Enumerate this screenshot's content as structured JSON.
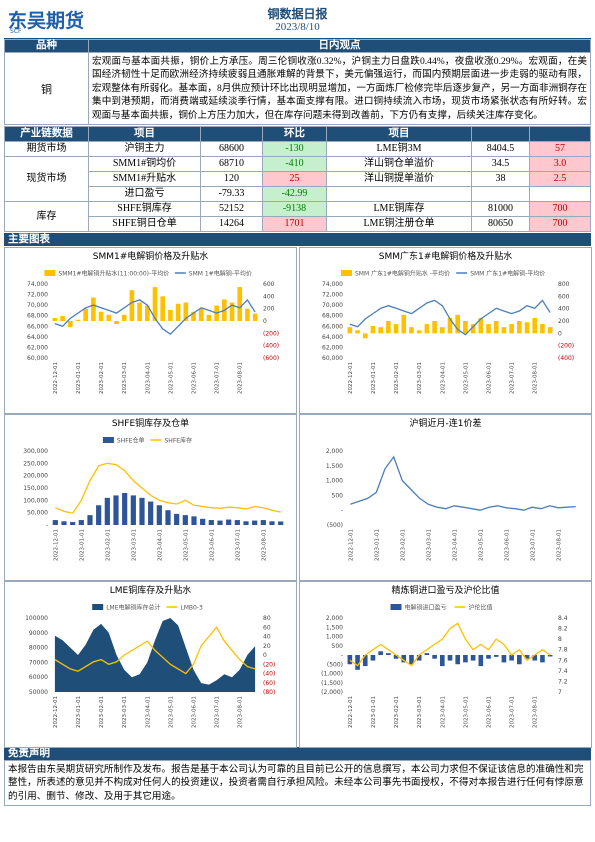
{
  "header": {
    "logo": "东吴期货",
    "logo_sub": "SCF",
    "title": "铜数据日报",
    "date": "2023/8/10"
  },
  "view_table": {
    "headers": [
      "品种",
      "日内观点"
    ],
    "rows": [
      [
        "铜",
        "宏观面与基本面共振，铜价上方承压。周三伦铜收涨0.32%，沪铜主力日盘跌0.44%，夜盘收涨0.29%。宏观面，在美国经济韧性十足而欧洲经济持续疲弱且通胀难解的背景下，美元偏强运行，而国内预期层面进一步走弱的驱动有限，宏观整体有所弱化。基本面，8月供应预计环比出现明显增加，一方面炼厂检修完毕后逐步复产，另一方面非洲铜存在集中到港预期，而消费端或延续淡季行情，基本面支撑有限。进口铜持续流入市场，现货市场紧张状态有所好转。宏观面与基本面共振，铜价上方压力加大，但在库存问题未得到改善前，下方仍有支撑，后续关注库存变化。"
      ]
    ]
  },
  "data_table": {
    "headers": [
      "产业链数据",
      "项目",
      "环比",
      "项目"
    ],
    "groups": [
      {
        "name": "期货市场",
        "rows": [
          [
            "沪铜主力",
            "68600",
            "-130",
            "LME铜3M",
            "8404.5",
            "57"
          ]
        ]
      },
      {
        "name": "现货市场",
        "rows": [
          [
            "SMM1#铜均价",
            "68710",
            "-410",
            "洋山铜仓单溢价",
            "34.5",
            "3.0"
          ],
          [
            "SMM1#升贴水",
            "120",
            "25",
            "洋山铜提单溢价",
            "38",
            "2.5"
          ],
          [
            "进口盈亏",
            "-79.33",
            "-42.99"
          ]
        ]
      },
      {
        "name": "库存",
        "rows": [
          [
            "SHFE铜库存",
            "52152",
            "-9138",
            "LME铜库存",
            "81000",
            "700"
          ],
          [
            "SHFE铜日仓单",
            "14264",
            "1701",
            "LME铜注册仓单",
            "80650",
            "700"
          ]
        ]
      }
    ]
  },
  "sections": {
    "charts": "主要图表",
    "disclaimer": "免责声明"
  },
  "disclaimer_text": "本报告由东吴期货研究所制作及发布。报告是基于本公司认为可靠的且目前已公开的信息撰写，本公司力求但不保证该信息的准确性和完整性，所表述的意见并不构成对任何人的投资建议，投资者需自行承担风险。未经本公司事先书面授权，不得对本报告进行任何有悖原意的引用、删节、修改、及用于其它用途。",
  "chart_data": [
    {
      "type": "combo",
      "title": "SMM1#电解铜价格及升贴水",
      "categories": [
        "2022-12-01",
        null,
        null,
        "2023-01-01",
        null,
        null,
        "2023-02-01",
        null,
        null,
        "2023-03-01",
        null,
        null,
        "2023-04-01",
        null,
        null,
        "2023-05-01",
        null,
        null,
        "2023-06-01",
        null,
        null,
        "2023-07-01",
        null,
        null,
        "2023-08-01",
        null,
        null
      ],
      "series": [
        {
          "name": "SMM1#电解铜升贴水(11:00:00)-平均价",
          "mark": "bar",
          "axis": "y2",
          "color": "#ffc000",
          "values": [
            50,
            80,
            -100,
            20,
            200,
            380,
            150,
            100,
            -50,
            100,
            500,
            300,
            250,
            550,
            400,
            180,
            280,
            300,
            150,
            200,
            100,
            250,
            350,
            300,
            550,
            200,
            120
          ]
        },
        {
          "name": "SMM 1#电解铜-平均价",
          "mark": "line",
          "color": "#4a7ebb",
          "values": [
            66500,
            66000,
            67500,
            68500,
            69500,
            70000,
            69500,
            69000,
            68500,
            69500,
            70500,
            71000,
            70000,
            67500,
            65500,
            64500,
            66000,
            67500,
            68500,
            69500,
            69000,
            68500,
            69000,
            70000,
            69500,
            71000,
            68700
          ]
        }
      ],
      "ylim": [
        60000,
        74000
      ],
      "yticks": [
        {
          "value": 60000,
          "label": "60,000"
        },
        {
          "value": 62000,
          "label": "62,000"
        },
        {
          "value": 64000,
          "label": "64,000"
        },
        {
          "value": 66000,
          "label": "66,000"
        },
        {
          "value": 68000,
          "label": "68,000"
        },
        {
          "value": 70000,
          "label": "70,000"
        },
        {
          "value": 72000,
          "label": "72,000"
        },
        {
          "value": 74000,
          "label": "74,000"
        }
      ],
      "y2lim": [
        -600,
        600
      ],
      "y2ticks": [
        {
          "value": -600,
          "label": "(600)"
        },
        {
          "value": -400,
          "label": "(400)"
        },
        {
          "value": -200,
          "label": "(200)"
        },
        0,
        200,
        400,
        600
      ]
    },
    {
      "type": "combo",
      "title": "SMM广东1#电解铜价格及升贴水",
      "categories": [
        "2022-12-01",
        null,
        null,
        "2023-01-01",
        null,
        null,
        "2023-02-01",
        null,
        null,
        "2023-03-01",
        null,
        null,
        "2023-04-01",
        null,
        null,
        "2023-05-01",
        null,
        null,
        "2023-06-01",
        null,
        null,
        "2023-07-01",
        null,
        null,
        "2023-08-01",
        null,
        null
      ],
      "series": [
        {
          "name": "SMM 广东1#电解铜升贴水 -平均价",
          "mark": "bar",
          "axis": "y2",
          "color": "#ffc000",
          "values": [
            100,
            50,
            -80,
            120,
            100,
            200,
            150,
            300,
            100,
            50,
            150,
            200,
            100,
            250,
            300,
            200,
            150,
            250,
            150,
            200,
            100,
            150,
            200,
            180,
            250,
            150,
            100
          ]
        },
        {
          "name": "SMM 广东1#电解铜-平均价",
          "mark": "line",
          "color": "#4a7ebb",
          "values": [
            66400,
            65900,
            67400,
            68400,
            69400,
            69900,
            69400,
            68900,
            68400,
            69400,
            70400,
            70900,
            69900,
            67400,
            65400,
            64400,
            65900,
            67400,
            68400,
            69400,
            68900,
            68400,
            68900,
            69900,
            69400,
            70900,
            68600
          ]
        }
      ],
      "ylim": [
        60000,
        74000
      ],
      "yticks": [
        {
          "value": 60000,
          "label": "60,000"
        },
        {
          "value": 62000,
          "label": "62,000"
        },
        {
          "value": 64000,
          "label": "64,000"
        },
        {
          "value": 66000,
          "label": "66,000"
        },
        {
          "value": 68000,
          "label": "68,000"
        },
        {
          "value": 70000,
          "label": "70,000"
        },
        {
          "value": 72000,
          "label": "72,000"
        },
        {
          "value": 74000,
          "label": "74,000"
        }
      ],
      "y2lim": [
        -400,
        800
      ],
      "y2ticks": [
        {
          "value": -400,
          "label": "(400)"
        },
        {
          "value": -200,
          "label": "(200)"
        },
        0,
        200,
        400,
        600,
        800
      ]
    },
    {
      "type": "combo",
      "title": "SHFE铜库存及仓单",
      "categories": [
        "2022-12-01",
        null,
        null,
        "2023-01-01",
        null,
        null,
        "2023-02-01",
        null,
        null,
        "2023-03-01",
        null,
        null,
        "2023-04-01",
        null,
        null,
        "2023-05-01",
        null,
        null,
        "2023-06-01",
        null,
        null,
        "2023-07-01",
        null,
        null,
        "2023-08-01",
        null,
        null
      ],
      "series": [
        {
          "name": "SHFE仓单",
          "mark": "bar",
          "color": "#2e5597",
          "values": [
            20000,
            15000,
            12000,
            20000,
            40000,
            80000,
            110000,
            120000,
            130000,
            120000,
            110000,
            95000,
            80000,
            60000,
            45000,
            40000,
            35000,
            25000,
            20000,
            18000,
            22000,
            20000,
            15000,
            18000,
            20000,
            15000,
            14264
          ]
        },
        {
          "name": "SHFE库存",
          "mark": "line",
          "color": "#ffc000",
          "values": [
            70000,
            55000,
            48000,
            100000,
            180000,
            240000,
            250000,
            245000,
            220000,
            180000,
            150000,
            120000,
            100000,
            90000,
            85000,
            100000,
            80000,
            75000,
            70000,
            68000,
            72000,
            70000,
            65000,
            75000,
            70000,
            60000,
            52152
          ]
        }
      ],
      "ylim": [
        0,
        300000
      ],
      "yticks": [
        {
          "value": 0,
          "label": "-"
        },
        {
          "value": 50000,
          "label": "50,000"
        },
        {
          "value": 100000,
          "label": "100,000"
        },
        {
          "value": 150000,
          "label": "150,000"
        },
        {
          "value": 200000,
          "label": "200,000"
        },
        {
          "value": 250000,
          "label": "250,000"
        },
        {
          "value": 300000,
          "label": "300,000"
        }
      ]
    },
    {
      "type": "line",
      "title": "沪铜近月-连1价差",
      "categories": [
        "2022-12-01",
        null,
        null,
        "2023-01-01",
        null,
        null,
        "2023-02-01",
        null,
        null,
        "2023-03-01",
        null,
        null,
        "2023-04-01",
        null,
        null,
        "2023-05-01",
        null,
        null,
        "2023-06-01",
        null,
        null,
        "2023-07-01",
        null,
        null,
        "2023-08-01",
        null,
        null
      ],
      "series": [
        {
          "color": "#4a7ebb",
          "values": [
            200,
            300,
            400,
            600,
            1400,
            1800,
            1000,
            700,
            400,
            200,
            100,
            50,
            150,
            100,
            50,
            0,
            100,
            150,
            80,
            50,
            0,
            100,
            50,
            150,
            80,
            100,
            120
          ]
        }
      ],
      "ylim": [
        -500,
        2000
      ],
      "yticks": [
        {
          "value": -500,
          "label": "(500)"
        },
        {
          "value": 0,
          "label": "-"
        },
        500,
        {
          "value": 1000,
          "label": "1,000"
        },
        {
          "value": 1500,
          "label": "1,500"
        },
        {
          "value": 2000,
          "label": "2,000"
        }
      ]
    },
    {
      "type": "combo",
      "title": "LME铜库存及升贴水",
      "categories": [
        "2022-12-01",
        null,
        null,
        "2023-01-01",
        null,
        null,
        "2023-02-01",
        null,
        null,
        "2023-03-01",
        null,
        null,
        "2023-04-01",
        null,
        null,
        "2023-05-01",
        null,
        null,
        "2023-06-01",
        null,
        null,
        "2023-07-01",
        null,
        null,
        "2023-08-01",
        null,
        null
      ],
      "series": [
        {
          "name": "LME电解铜库存总计",
          "mark": "area",
          "color": "#1f4e79",
          "values": [
            88000,
            85000,
            80000,
            75000,
            82000,
            92000,
            96000,
            90000,
            75000,
            65000,
            60000,
            62000,
            70000,
            85000,
            98000,
            100000,
            95000,
            80000,
            65000,
            56000,
            55000,
            58000,
            62000,
            60000,
            65000,
            75000,
            81000
          ]
        },
        {
          "name": "LMB0-3",
          "mark": "line",
          "axis": "y2",
          "color": "#ffc000",
          "values": [
            -10,
            -20,
            -30,
            -35,
            -25,
            -15,
            -10,
            -20,
            -15,
            0,
            10,
            20,
            30,
            10,
            -5,
            -20,
            -30,
            -40,
            -20,
            20,
            40,
            60,
            30,
            10,
            -10,
            -25,
            -30
          ]
        }
      ],
      "ylim": [
        50000,
        100000
      ],
      "yticks": [
        50000,
        60000,
        70000,
        80000,
        90000,
        100000
      ],
      "y2lim": [
        -80,
        80
      ],
      "y2ticks": [
        {
          "value": -80,
          "label": "(80)"
        },
        {
          "value": -60,
          "label": "(60)"
        },
        {
          "value": -40,
          "label": "(40)"
        },
        {
          "value": -20,
          "label": "(20)"
        },
        0,
        20,
        40,
        60,
        80
      ]
    },
    {
      "type": "combo",
      "title": "精炼铜进口盈亏及沪伦比值",
      "categories": [
        "2022-12-01",
        null,
        null,
        "2023-01-01",
        null,
        null,
        "2023-02-01",
        null,
        null,
        "2023-03-01",
        null,
        null,
        "2023-04-01",
        null,
        null,
        "2023-05-01",
        null,
        null,
        "2023-06-01",
        null,
        null,
        "2023-07-01",
        null,
        null,
        "2023-08-01",
        null,
        null
      ],
      "series": [
        {
          "name": "电解铜进口盈亏",
          "mark": "bar",
          "color": "#2e5597",
          "values": [
            -500,
            -800,
            -600,
            -300,
            200,
            100,
            -200,
            -400,
            -500,
            -300,
            100,
            -200,
            -600,
            -300,
            -500,
            -400,
            -300,
            -600,
            -200,
            -100,
            -400,
            -300,
            -500,
            -200,
            -300,
            -400,
            -79.33
          ]
        },
        {
          "name": "沪伦比值",
          "mark": "line",
          "axis": "y2",
          "color": "#ffc000",
          "values": [
            7.6,
            7.5,
            7.7,
            7.8,
            7.9,
            7.8,
            7.7,
            7.6,
            7.5,
            7.7,
            7.8,
            7.9,
            8.0,
            8.2,
            8.3,
            8.0,
            7.8,
            7.9,
            7.8,
            8.0,
            7.9,
            7.7,
            7.8,
            7.6,
            7.7,
            7.8,
            7.7
          ]
        }
      ],
      "ylim": [
        -2000,
        2000
      ],
      "yticks": [
        {
          "value": -2000,
          "label": "(2,000)"
        },
        {
          "value": -1500,
          "label": "(1,500)"
        },
        {
          "value": -1000,
          "label": "(1,000)"
        },
        {
          "value": -500,
          "label": "(500)"
        },
        {
          "value": 0,
          "label": "-"
        },
        500,
        {
          "value": 1000,
          "label": "1,000"
        },
        {
          "value": 1500,
          "label": "1,500"
        },
        {
          "value": 2000,
          "label": "2,000"
        }
      ],
      "y2lim": [
        7,
        8.4
      ],
      "y2ticks": [
        7,
        7.2,
        7.4,
        7.6,
        7.8,
        8,
        8.2,
        8.4
      ]
    }
  ]
}
